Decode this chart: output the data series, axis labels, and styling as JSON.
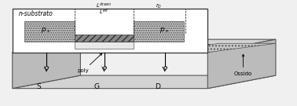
{
  "bg_color": "#f0f0f0",
  "labels": {
    "p_left": "p+",
    "p_right": "p+",
    "S": "S",
    "G": "G",
    "D": "D",
    "poly": "poly",
    "ossido": "Ossido",
    "n_sub": "n-substrato",
    "L_eff": "L^{eff}",
    "L_drawn": "L^{drawn}",
    "r_D": "r_D"
  },
  "colors": {
    "substrate": "#d3d3d3",
    "substrate_side": "#bbbbbb",
    "p_region": "#c8c8c8",
    "gate_oxide": "#888888",
    "channel": "#e8e8e8",
    "white": "#ffffff",
    "dark": "#333333",
    "mid": "#555555",
    "bg": "#f0f0f0"
  }
}
